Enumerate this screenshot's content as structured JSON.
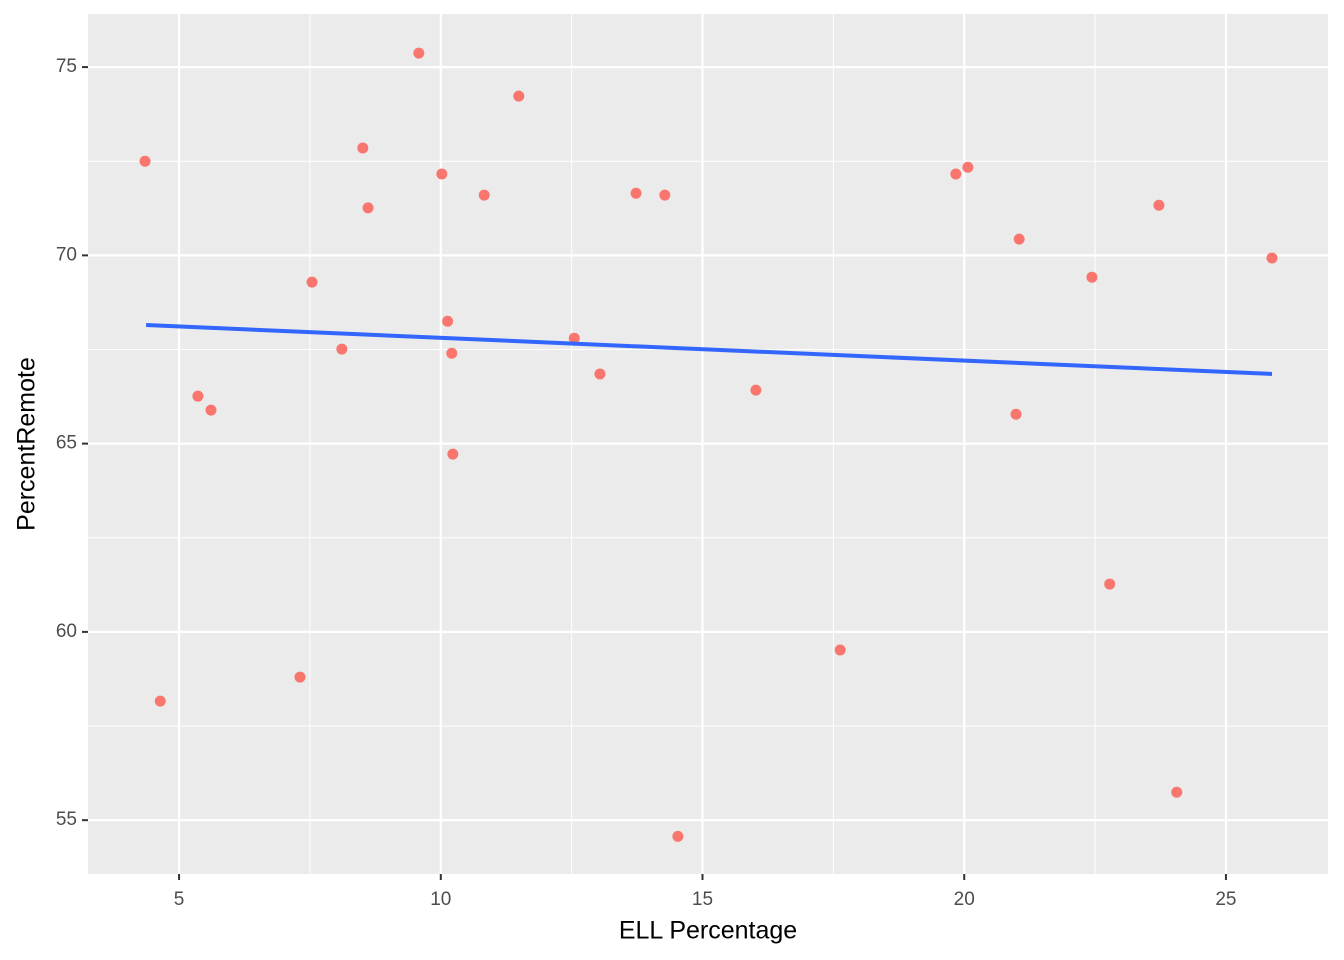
{
  "chart_data": {
    "type": "scatter",
    "x_label": "ELL Percentage",
    "y_label": "PercentRemote",
    "xlim": [
      3.26,
      26.95
    ],
    "ylim": [
      53.57,
      76.41
    ],
    "xticks": [
      5,
      10,
      15,
      20,
      25
    ],
    "yticks": [
      55,
      60,
      65,
      70,
      75
    ],
    "x_minor_ticks": [
      7.5,
      12.5,
      17.5,
      22.5
    ],
    "y_minor_ticks": [
      57.5,
      62.5,
      67.5,
      72.5
    ],
    "grid": true,
    "background": "#ebebeb",
    "series": [
      {
        "color": "#f8766d",
        "x": [
          4.35,
          4.64,
          5.36,
          5.61,
          7.31,
          7.54,
          8.11,
          8.51,
          8.61,
          9.58,
          10.02,
          10.13,
          10.21,
          10.23,
          10.83,
          11.49,
          12.55,
          13.04,
          13.73,
          14.28,
          14.53,
          16.02,
          17.63,
          19.84,
          20.07,
          20.99,
          21.05,
          22.44,
          22.78,
          23.72,
          24.06,
          25.88
        ],
        "values": [
          72.5,
          58.16,
          66.26,
          65.89,
          58.8,
          69.29,
          67.51,
          72.85,
          71.26,
          75.37,
          72.16,
          68.25,
          67.4,
          64.72,
          71.6,
          74.23,
          67.8,
          66.85,
          71.65,
          71.6,
          54.57,
          66.42,
          59.52,
          72.16,
          72.34,
          65.78,
          70.43,
          69.42,
          61.27,
          71.33,
          55.74,
          69.93
        ]
      },
      {
        "type": "line",
        "color": "#3366ff",
        "x": [
          4.37,
          25.88
        ],
        "values": [
          68.15,
          66.85
        ]
      }
    ]
  }
}
